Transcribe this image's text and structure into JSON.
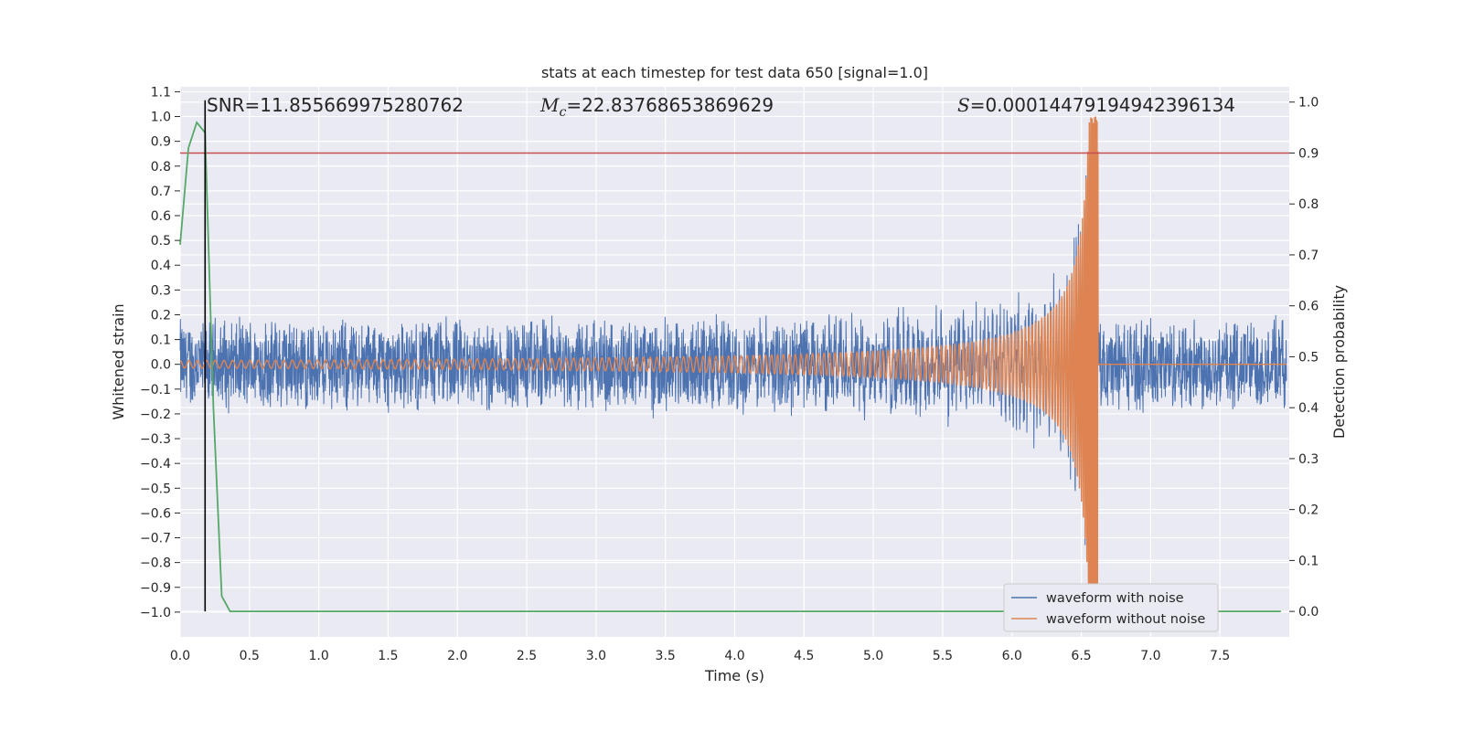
{
  "chart_data": {
    "type": "line",
    "title": "stats at each timestep for test data 650 [signal=1.0]",
    "xlabel": "Time (s)",
    "ylabel": "Whitened strain",
    "ylabel_right": "Detection probability",
    "xlim": [
      0.0,
      8.0
    ],
    "ylim": [
      -1.1,
      1.12
    ],
    "ylim_right": [
      -0.05,
      1.03
    ],
    "x_ticks": [
      "0.0",
      "0.5",
      "1.0",
      "1.5",
      "2.0",
      "2.5",
      "3.0",
      "3.5",
      "4.0",
      "4.5",
      "5.0",
      "5.5",
      "6.0",
      "6.5",
      "7.0",
      "7.5"
    ],
    "y_ticks": [
      "1.1",
      "1.0",
      "0.9",
      "0.8",
      "0.7",
      "0.6",
      "0.5",
      "0.4",
      "0.3",
      "0.2",
      "0.1",
      "0.0",
      "−0.1",
      "−0.2",
      "−0.3",
      "−0.4",
      "−0.5",
      "−0.6",
      "−0.7",
      "−0.8",
      "−0.9",
      "−1.0"
    ],
    "y_right_ticks": [
      "1.0",
      "0.9",
      "0.8",
      "0.7",
      "0.6",
      "0.5",
      "0.4",
      "0.3",
      "0.2",
      "0.1",
      "0.0"
    ],
    "grid": true,
    "legend_position": "lower-right",
    "annotations": {
      "snr": "SNR=11.855669975280762",
      "mc_symbol": "M",
      "mc_sub": "c",
      "mc_value": "=22.83768653869629",
      "s_symbol": "S",
      "s_value": "=0.00014479194942396134"
    },
    "series": [
      {
        "name": "waveform with noise",
        "color": "#4c72b0",
        "axis": "left",
        "noise_band": [
          -0.2,
          0.2
        ],
        "merger_time": 6.62
      },
      {
        "name": "waveform without noise",
        "color": "#dd8452",
        "axis": "left",
        "merger_time": 6.62,
        "start_amplitude": 0.015,
        "peak_amplitude": 1.0
      },
      {
        "color": "#55a868",
        "axis": "right",
        "x": [
          0.0,
          0.06,
          0.12,
          0.18,
          0.24,
          0.3,
          0.36,
          0.42,
          7.94
        ],
        "y": [
          0.72,
          0.91,
          0.96,
          0.94,
          0.4,
          0.03,
          0.0,
          0.0,
          0.0
        ]
      }
    ],
    "threshold_right": 0.9,
    "threshold_color": "#c44e52",
    "vertical_marker_x": 0.18
  }
}
